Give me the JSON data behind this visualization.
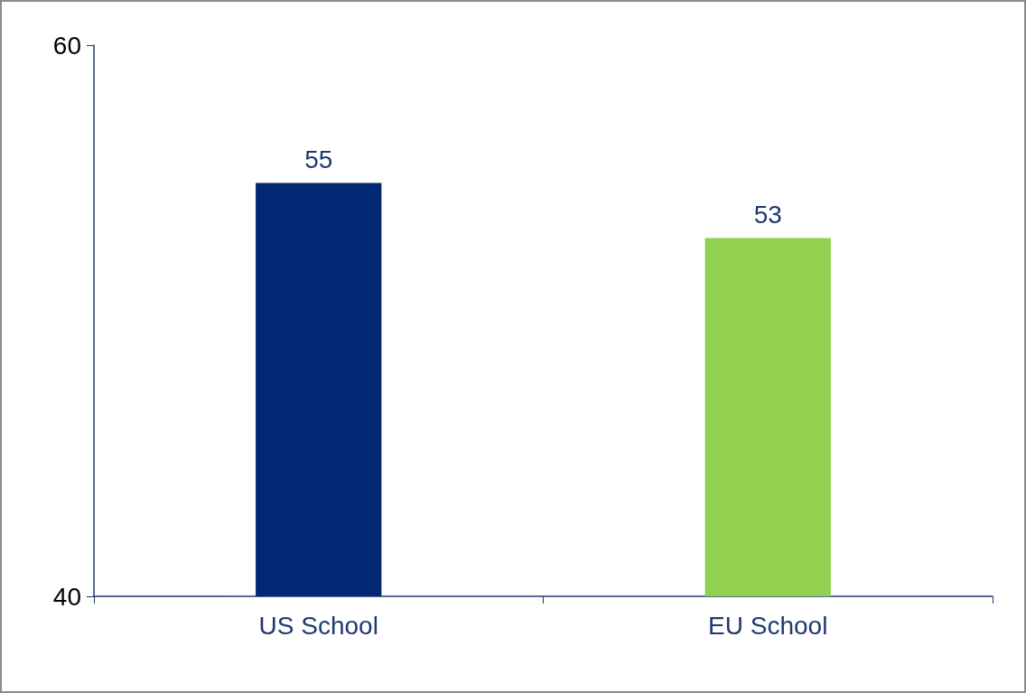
{
  "chart_data": {
    "type": "bar",
    "categories": [
      "US School",
      "EU School"
    ],
    "values": [
      55,
      53
    ],
    "colors": [
      "#002873",
      "#92d050"
    ],
    "ylim": [
      40,
      60
    ],
    "yticks": [
      40,
      60
    ],
    "data_labels": true,
    "grid": false
  }
}
